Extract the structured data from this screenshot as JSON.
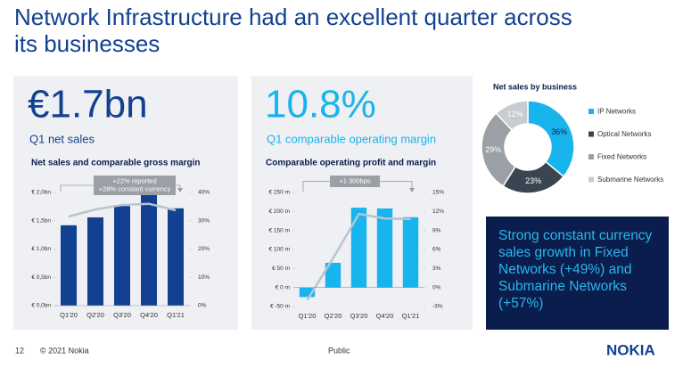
{
  "title_lines": [
    "Network Infrastructure had an excellent quarter across",
    "its businesses"
  ],
  "panels": [
    {
      "headline": "€1.7bn",
      "subtitle": "Q1 net sales"
    },
    {
      "headline": "10.8%",
      "subtitle": "Q1 comparable operating margin"
    }
  ],
  "callout": "Strong constant currency sales growth in Fixed Networks (+49%) and Submarine Networks (+57%)",
  "footer": {
    "page": "12",
    "copyright": "© 2021 Nokia",
    "classification": "Public",
    "logo": "NOKIA"
  },
  "chart_data": [
    {
      "type": "bar",
      "title": "Net sales and comparable gross margin",
      "annotation": [
        "+22% reported",
        "+28% constant currency"
      ],
      "categories": [
        "Q1'20",
        "Q2'20",
        "Q3'20",
        "Q4'20",
        "Q1'21"
      ],
      "series": [
        {
          "type": "bar",
          "color": "#124191",
          "values": [
            1.42,
            1.56,
            1.76,
            1.98,
            1.72
          ]
        },
        {
          "type": "line",
          "axis": "y2",
          "color": "#b8c4d0",
          "values": [
            31.5,
            34,
            35.6,
            36,
            33.7
          ]
        }
      ],
      "ylim": [
        0,
        2.0
      ],
      "yticks": [
        {
          "value": 0,
          "label": "€ 0,0bn"
        },
        {
          "value": 0.5,
          "label": "€ 0,5bn"
        },
        {
          "value": 1.0,
          "label": "€ 1,0bn"
        },
        {
          "value": 1.5,
          "label": "€ 1,5bn"
        },
        {
          "value": 2.0,
          "label": "€ 2,0bn"
        }
      ],
      "y2lim": [
        0,
        40
      ],
      "y2ticks": [
        {
          "value": 0,
          "label": "0%"
        },
        {
          "value": 10,
          "label": "10%"
        },
        {
          "value": 20,
          "label": "20%"
        },
        {
          "value": 30,
          "label": "30%"
        },
        {
          "value": 40,
          "label": "40%"
        }
      ]
    },
    {
      "type": "bar",
      "title": "Comparable operating profit and margin",
      "annotation": [
        "+1 300bps"
      ],
      "categories": [
        "Q1'20",
        "Q2'20",
        "Q3'20",
        "Q4'20",
        "Q1'21"
      ],
      "series": [
        {
          "type": "bar",
          "color": "#18b4ee",
          "values": [
            -25,
            65,
            210,
            208,
            185
          ]
        },
        {
          "type": "line",
          "axis": "y2",
          "color": "#b8c4d0",
          "values": [
            -2.0,
            4.6,
            11.6,
            10.9,
            10.8
          ]
        }
      ],
      "ylim": [
        -50,
        250
      ],
      "yticks": [
        {
          "value": -50,
          "label": "€ -50 m"
        },
        {
          "value": 0,
          "label": "€ 0 m"
        },
        {
          "value": 50,
          "label": "€ 50 m"
        },
        {
          "value": 100,
          "label": "€ 100 m"
        },
        {
          "value": 150,
          "label": "€ 150 m"
        },
        {
          "value": 200,
          "label": "€ 200 m"
        },
        {
          "value": 250,
          "label": "€ 250 m"
        }
      ],
      "y2lim": [
        -3,
        15
      ],
      "y2ticks": [
        {
          "value": -3,
          "label": "-3%"
        },
        {
          "value": 0,
          "label": "0%"
        },
        {
          "value": 3,
          "label": "3%"
        },
        {
          "value": 6,
          "label": "6%"
        },
        {
          "value": 9,
          "label": "9%"
        },
        {
          "value": 12,
          "label": "12%"
        },
        {
          "value": 15,
          "label": "15%"
        }
      ]
    },
    {
      "type": "pie",
      "title": "Net sales by business",
      "categories": [
        "IP Networks",
        "Optical Networks",
        "Fixed Networks",
        "Submarine Networks"
      ],
      "values": [
        36,
        23,
        29,
        12
      ],
      "value_labels": [
        "36%",
        "23%",
        "29%",
        "12%"
      ],
      "colors": [
        "#18b4ee",
        "#3a4552",
        "#9aa0a6",
        "#c8ccd0"
      ]
    }
  ]
}
